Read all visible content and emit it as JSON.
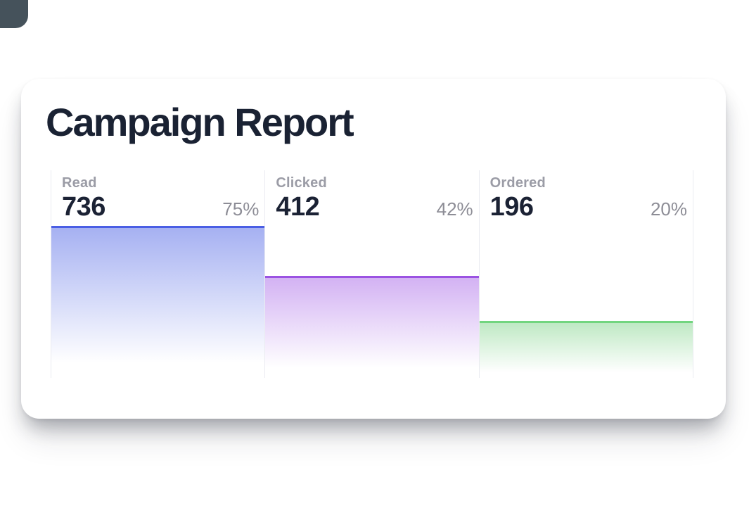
{
  "card": {
    "title": "Campaign Report",
    "title_color": "#1a2233",
    "background": "#ffffff"
  },
  "decor": {
    "corner_shape_color": "#45525b"
  },
  "chart_data": {
    "type": "bar",
    "title": "Campaign Report",
    "categories": [
      "Read",
      "Clicked",
      "Ordered"
    ],
    "values": [
      736,
      412,
      196
    ],
    "percent_labels": [
      "75%",
      "42%",
      "20%"
    ],
    "legend": "none",
    "gridlines": false,
    "divider_color": "#eaebf1",
    "series": [
      {
        "label": "Read",
        "value": "736",
        "percent": "75%",
        "accent_color": "#4a5ee4",
        "fill_color": "#a6b1f2",
        "bar_height_pct": 73.2
      },
      {
        "label": "Clicked",
        "value": "412",
        "percent": "42%",
        "accent_color": "#9b53e2",
        "fill_color": "#d3b2f3",
        "bar_height_pct": 49.2
      },
      {
        "label": "Ordered",
        "value": "196",
        "percent": "20%",
        "accent_color": "#72d57f",
        "fill_color": "#bfe9c4",
        "bar_height_pct": 27.5
      }
    ]
  }
}
